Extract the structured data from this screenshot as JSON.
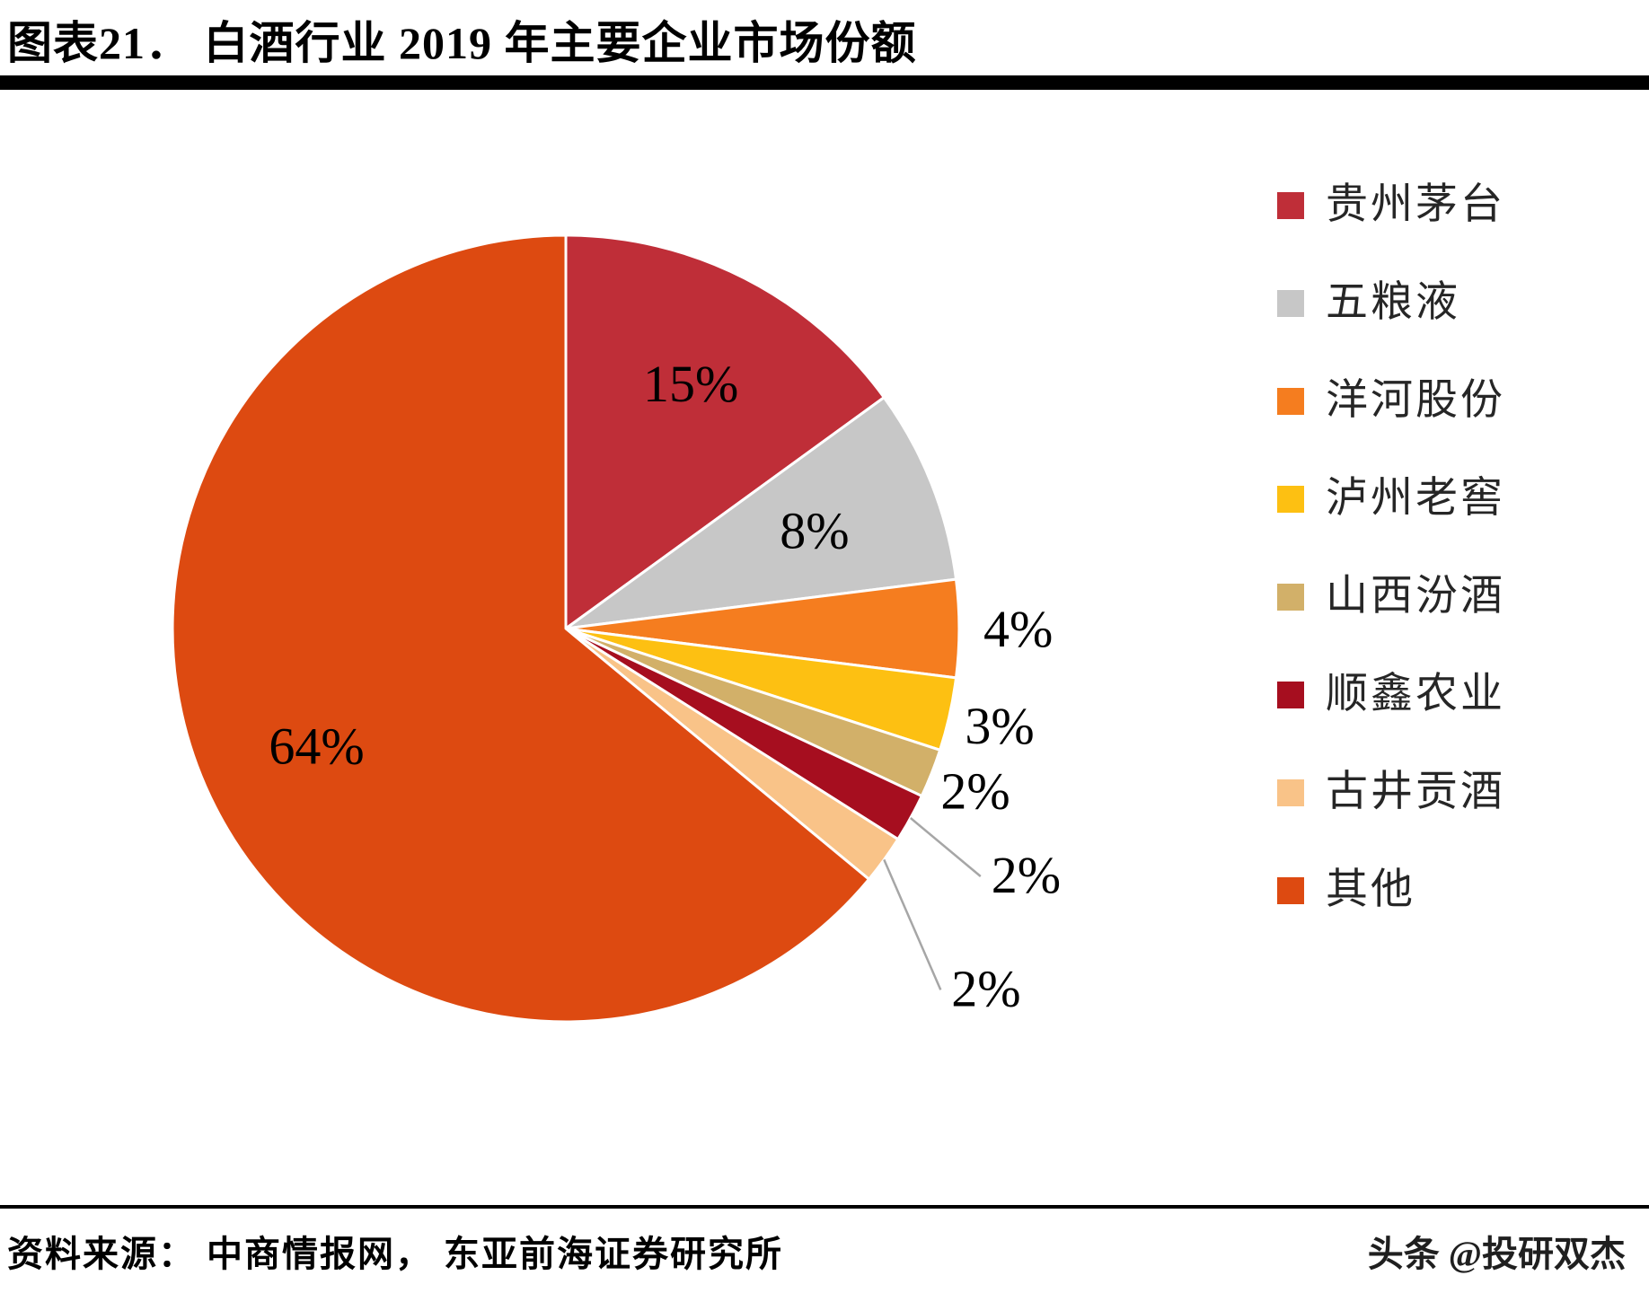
{
  "title": "图表21． 白酒行业 2019 年主要企业市场份额",
  "source": "资料来源： 中商情报网， 东亚前海证券研究所",
  "watermark": "头条 @投研双杰",
  "chart_data": {
    "type": "pie",
    "title": "白酒行业2019年主要企业市场份额",
    "unit": "%",
    "start_angle_deg": 0,
    "direction": "clockwise",
    "legend_position": "right",
    "slices": [
      {
        "label": "贵州茅台",
        "value": 15,
        "color": "#bf2e38"
      },
      {
        "label": "五粮液",
        "value": 8,
        "color": "#c7c7c7"
      },
      {
        "label": "洋河股份",
        "value": 4,
        "color": "#f57d1f"
      },
      {
        "label": "泸州老窖",
        "value": 3,
        "color": "#fdc012"
      },
      {
        "label": "山西汾酒",
        "value": 2,
        "color": "#d2b069"
      },
      {
        "label": "顺鑫农业",
        "value": 2,
        "color": "#a60e1f"
      },
      {
        "label": "古井贡酒",
        "value": 2,
        "color": "#f9c388"
      },
      {
        "label": "其他",
        "value": 64,
        "color": "#dd4a11"
      }
    ],
    "leader_line_color": "#a6a6a6"
  }
}
